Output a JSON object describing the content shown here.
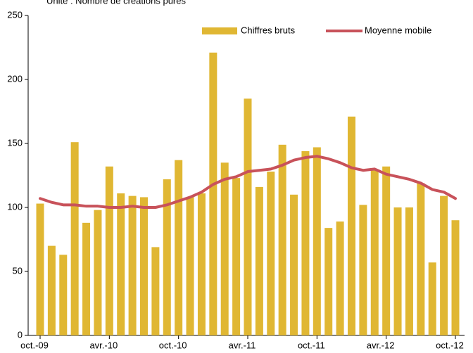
{
  "chart_data": {
    "type": "bar_line",
    "subtitle": "Unité : Nombre de créations pures",
    "categories": [
      "oct.-09",
      null,
      null,
      null,
      null,
      null,
      "avr.-10",
      null,
      null,
      null,
      null,
      null,
      "oct.-10",
      null,
      null,
      null,
      null,
      null,
      "avr.-11",
      null,
      null,
      null,
      null,
      null,
      "oct.-11",
      null,
      null,
      null,
      null,
      null,
      "avr.-12",
      null,
      null,
      null,
      null,
      null,
      "oct.-12"
    ],
    "series": [
      {
        "name": "Chiffres bruts",
        "color": "#e0b733",
        "kind": "bar",
        "values": [
          103,
          70,
          63,
          151,
          88,
          98,
          132,
          111,
          109,
          108,
          69,
          122,
          137,
          108,
          111,
          221,
          135,
          123,
          185,
          116,
          128,
          149,
          110,
          144,
          147,
          84,
          89,
          171,
          102,
          129,
          132,
          100,
          100,
          119,
          57,
          109,
          90
        ]
      },
      {
        "name": "Moyenne mobile",
        "color": "#c8525a",
        "kind": "line",
        "values": [
          107,
          104,
          102,
          102,
          101,
          101,
          100,
          100,
          101,
          100,
          100,
          102,
          105,
          108,
          112,
          118,
          122,
          124,
          128,
          129,
          130,
          133,
          137,
          139,
          140,
          138,
          135,
          131,
          129,
          130,
          126,
          124,
          122,
          119,
          114,
          112,
          107
        ]
      }
    ],
    "ylim": [
      0,
      250
    ],
    "yticks": [
      0,
      50,
      100,
      150,
      200,
      250
    ],
    "grid": false,
    "legend": "upper right"
  }
}
